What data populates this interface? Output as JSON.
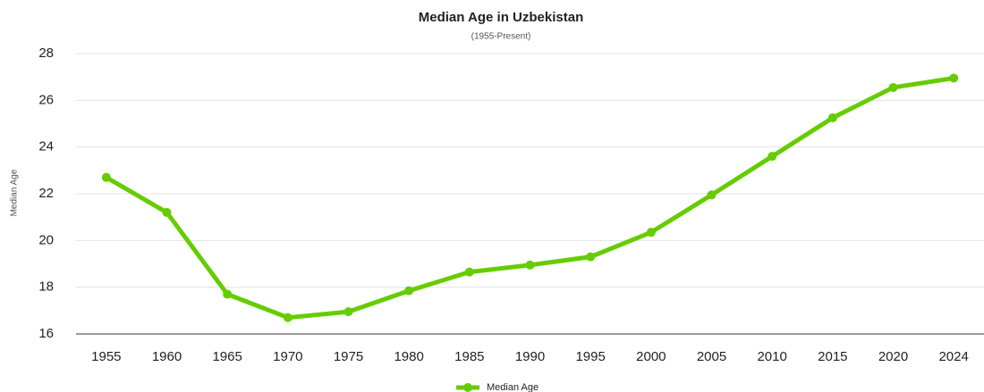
{
  "chart_data": {
    "type": "line",
    "title": "Median Age in Uzbekistan",
    "subtitle": "(1955-Present)",
    "y_label": "Median Age",
    "categories": [
      "1955",
      "1960",
      "1965",
      "1970",
      "1975",
      "1980",
      "1985",
      "1990",
      "1995",
      "2000",
      "2005",
      "2010",
      "2015",
      "2020",
      "2024"
    ],
    "series": [
      {
        "name": "Median Age",
        "color": "#66cc00",
        "values": [
          22.7,
          21.2,
          17.7,
          16.7,
          16.95,
          17.85,
          18.65,
          18.95,
          19.3,
          20.35,
          21.95,
          23.6,
          25.25,
          26.55,
          26.95
        ]
      }
    ],
    "ylim": [
      16,
      28
    ],
    "yticks": [
      16,
      18,
      20,
      22,
      24,
      26,
      28
    ],
    "grid": true,
    "legend": "bottom"
  }
}
